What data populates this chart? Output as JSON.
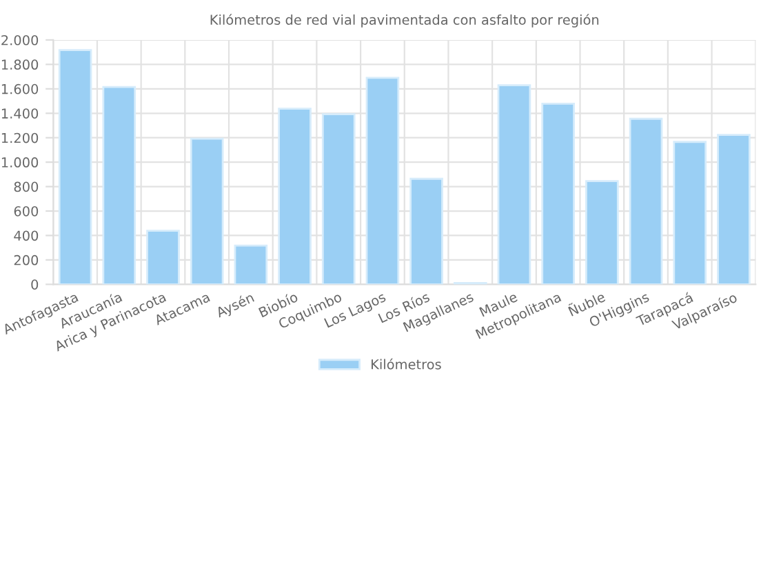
{
  "chart_data": {
    "type": "bar",
    "title": "Kilómetros de red vial pavimentada con asfalto por región",
    "categories": [
      "Antofagasta",
      "Araucanía",
      "Arica y Parinacota",
      "Atacama",
      "Aysén",
      "Biobío",
      "Coquimbo",
      "Los Lagos",
      "Los Ríos",
      "Magallanes",
      "Maule",
      "Metropolitana",
      "Ñuble",
      "O'Higgins",
      "Tarapacá",
      "Valparaíso"
    ],
    "series": [
      {
        "name": "Kilómetros",
        "color": "#9acff4",
        "values": [
          1917,
          1615,
          438,
          1192,
          317,
          1438,
          1392,
          1690,
          864,
          11,
          1630,
          1479,
          845,
          1355,
          1166,
          1223
        ]
      }
    ],
    "ylim": [
      0,
      2000
    ],
    "yticks": [
      0,
      {
        "value": 200,
        "label": "200"
      },
      {
        "value": 400,
        "label": "400"
      },
      {
        "value": 600,
        "label": "600"
      },
      {
        "value": 800,
        "label": "800"
      },
      {
        "value": 1000,
        "label": "1.000"
      },
      {
        "value": 1200,
        "label": "1.200"
      },
      {
        "value": 1400,
        "label": "1.400"
      },
      {
        "value": 1600,
        "label": "1.600"
      },
      {
        "value": 1800,
        "label": "1.800"
      },
      {
        "value": 2000,
        "label": "2.000"
      }
    ],
    "grid": true,
    "legend": "bottom"
  }
}
